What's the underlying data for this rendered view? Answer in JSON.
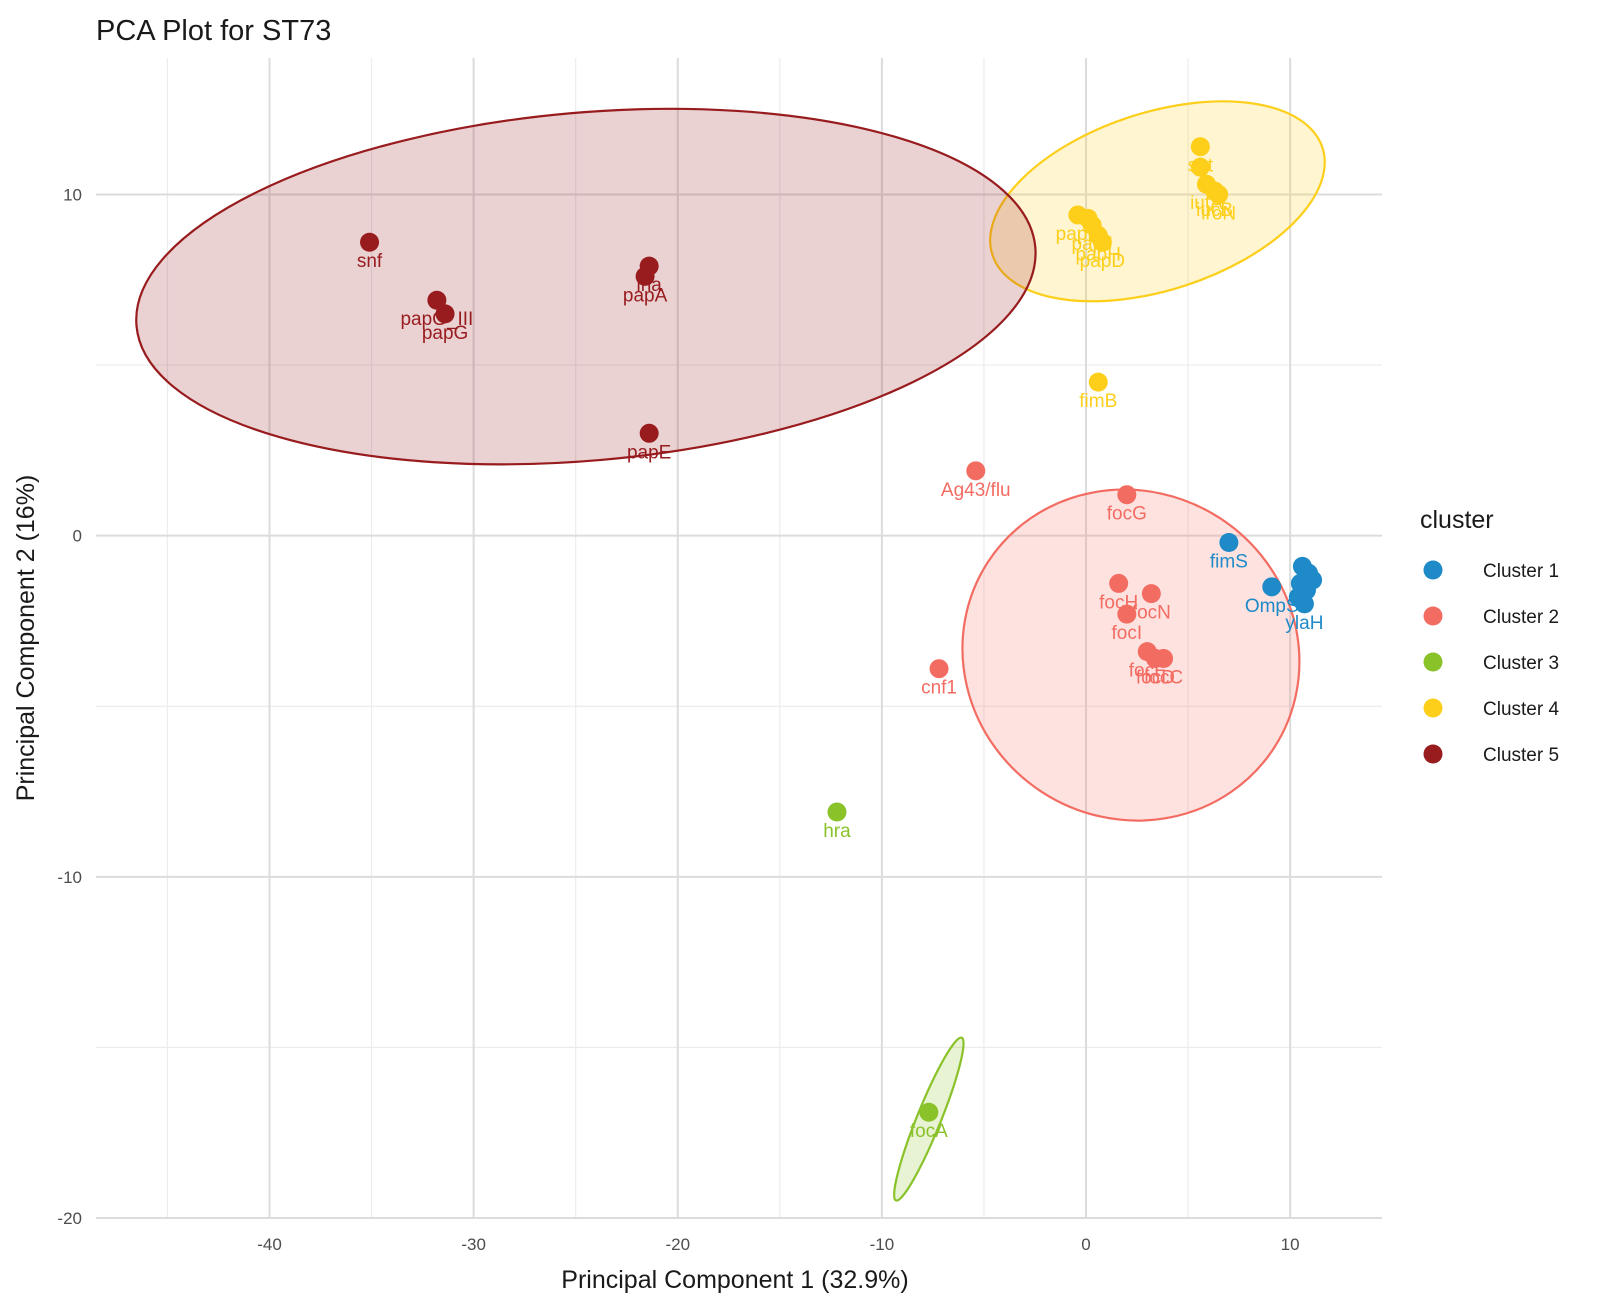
{
  "chart_data": {
    "type": "scatter",
    "title": "PCA Plot for ST73",
    "xlabel": "Principal Component 1 (32.9%)",
    "ylabel": "Principal Component 2 (16%)",
    "xlim": [
      -48.5,
      14.5
    ],
    "ylim": [
      -20.0,
      14.0
    ],
    "x_ticks": [
      -40,
      -30,
      -20,
      -10,
      0,
      10
    ],
    "y_ticks": [
      -20,
      -10,
      0,
      10
    ],
    "grid": true,
    "legend_title": "cluster",
    "legend_position": "right",
    "series": [
      {
        "name": "Cluster 1",
        "color": "#1f8ac8",
        "ellipse": null,
        "points": [
          {
            "x": 7.0,
            "y": -0.2,
            "label": "fimS"
          },
          {
            "x": 9.1,
            "y": -1.5,
            "label": "OmpS"
          },
          {
            "x": 10.6,
            "y": -0.9,
            "label": ""
          },
          {
            "x": 10.9,
            "y": -1.1,
            "label": ""
          },
          {
            "x": 10.5,
            "y": -1.4,
            "label": ""
          },
          {
            "x": 10.8,
            "y": -1.6,
            "label": ""
          },
          {
            "x": 10.4,
            "y": -1.8,
            "label": ""
          },
          {
            "x": 11.1,
            "y": -1.3,
            "label": ""
          },
          {
            "x": 10.7,
            "y": -2.0,
            "label": "ylaH"
          }
        ]
      },
      {
        "name": "Cluster 2",
        "color": "#f36c62",
        "ellipse": {
          "cx": 2.2,
          "cy": -3.5,
          "rx": 8.0,
          "ry": 5.0,
          "angle": -57
        },
        "points": [
          {
            "x": -5.4,
            "y": 1.9,
            "label": "Ag43/flu"
          },
          {
            "x": 2.0,
            "y": 1.2,
            "label": "focG"
          },
          {
            "x": 1.6,
            "y": -1.4,
            "label": "focH"
          },
          {
            "x": 3.2,
            "y": -1.7,
            "label": "focN"
          },
          {
            "x": 2.0,
            "y": -2.3,
            "label": "focI"
          },
          {
            "x": 3.0,
            "y": -3.4,
            "label": "focF"
          },
          {
            "x": 3.4,
            "y": -3.6,
            "label": "focD"
          },
          {
            "x": 3.8,
            "y": -3.6,
            "label": "focC"
          },
          {
            "x": -7.2,
            "y": -3.9,
            "label": "cnf1"
          }
        ]
      },
      {
        "name": "Cluster 3",
        "color": "#8ac22a",
        "ellipse": {
          "cx": -7.7,
          "cy": -17.1,
          "rx": 4.3,
          "ry": 0.35,
          "angle": -68
        },
        "points": [
          {
            "x": -12.2,
            "y": -8.1,
            "label": "hra"
          },
          {
            "x": -7.7,
            "y": -16.9,
            "label": "focA"
          }
        ]
      },
      {
        "name": "Cluster 4",
        "color": "#fdcf1a",
        "ellipse": {
          "cx": 3.5,
          "cy": 9.8,
          "rx": 8.5,
          "ry": 2.6,
          "angle": -18
        },
        "points": [
          {
            "x": 5.6,
            "y": 11.4,
            "label": "sat"
          },
          {
            "x": 5.6,
            "y": 10.8,
            "label": ""
          },
          {
            "x": 5.9,
            "y": 10.3,
            "label": "iutA"
          },
          {
            "x": 6.3,
            "y": 10.1,
            "label": "iucB"
          },
          {
            "x": 6.5,
            "y": 10.0,
            "label": "iroN"
          },
          {
            "x": -0.4,
            "y": 9.4,
            "label": "papK"
          },
          {
            "x": 0.1,
            "y": 9.3,
            "label": ""
          },
          {
            "x": 0.3,
            "y": 9.1,
            "label": "papJ"
          },
          {
            "x": 0.6,
            "y": 8.8,
            "label": "papH"
          },
          {
            "x": 0.8,
            "y": 8.6,
            "label": "papD"
          },
          {
            "x": 0.6,
            "y": 4.5,
            "label": "fimB"
          }
        ]
      },
      {
        "name": "Cluster 5",
        "color": "#981b1e",
        "ellipse": {
          "cx": -24.5,
          "cy": 7.3,
          "rx": 22.1,
          "ry": 5.1,
          "angle": -5
        },
        "points": [
          {
            "x": -35.1,
            "y": 8.6,
            "label": "snf"
          },
          {
            "x": -31.8,
            "y": 6.9,
            "label": "papG_III"
          },
          {
            "x": -31.4,
            "y": 6.5,
            "label": "papG"
          },
          {
            "x": -21.4,
            "y": 7.9,
            "label": "iha"
          },
          {
            "x": -21.6,
            "y": 7.6,
            "label": "papA"
          },
          {
            "x": -21.4,
            "y": 3.0,
            "label": "papE"
          }
        ]
      }
    ]
  }
}
